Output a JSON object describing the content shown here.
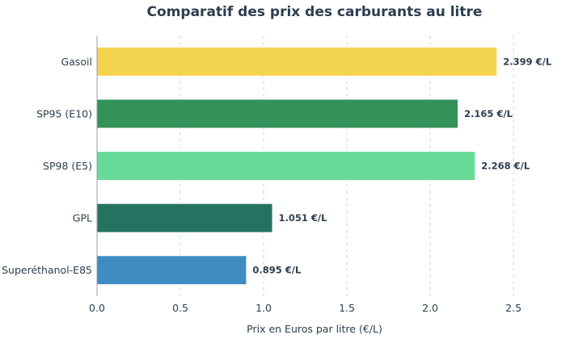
{
  "chart_data": {
    "type": "bar",
    "orientation": "horizontal",
    "title": "Comparatif des prix des carburants au litre",
    "xlabel": "Prix en Euros par litre (€/L)",
    "ylabel": "",
    "xlim": [
      0,
      2.65
    ],
    "x_ticks": [
      "0.0",
      "0.5",
      "1.0",
      "1.5",
      "2.0",
      "2.5"
    ],
    "x_tick_values": [
      0,
      0.5,
      1.0,
      1.5,
      2.0,
      2.5
    ],
    "grid": "vertical-dashed",
    "categories": [
      "Gasoil",
      "SP95 (E10)",
      "SP98 (E5)",
      "GPL",
      "Superéthanol-E85"
    ],
    "values": [
      2.399,
      2.165,
      2.268,
      1.051,
      0.895
    ],
    "data_labels": [
      "2.399 €/L",
      "2.165 €/L",
      "2.268 €/L",
      "1.051 €/L",
      "0.895 €/L"
    ],
    "colors": [
      "#f4d350",
      "#33915a",
      "#68da97",
      "#247360",
      "#3e8cc2"
    ]
  }
}
